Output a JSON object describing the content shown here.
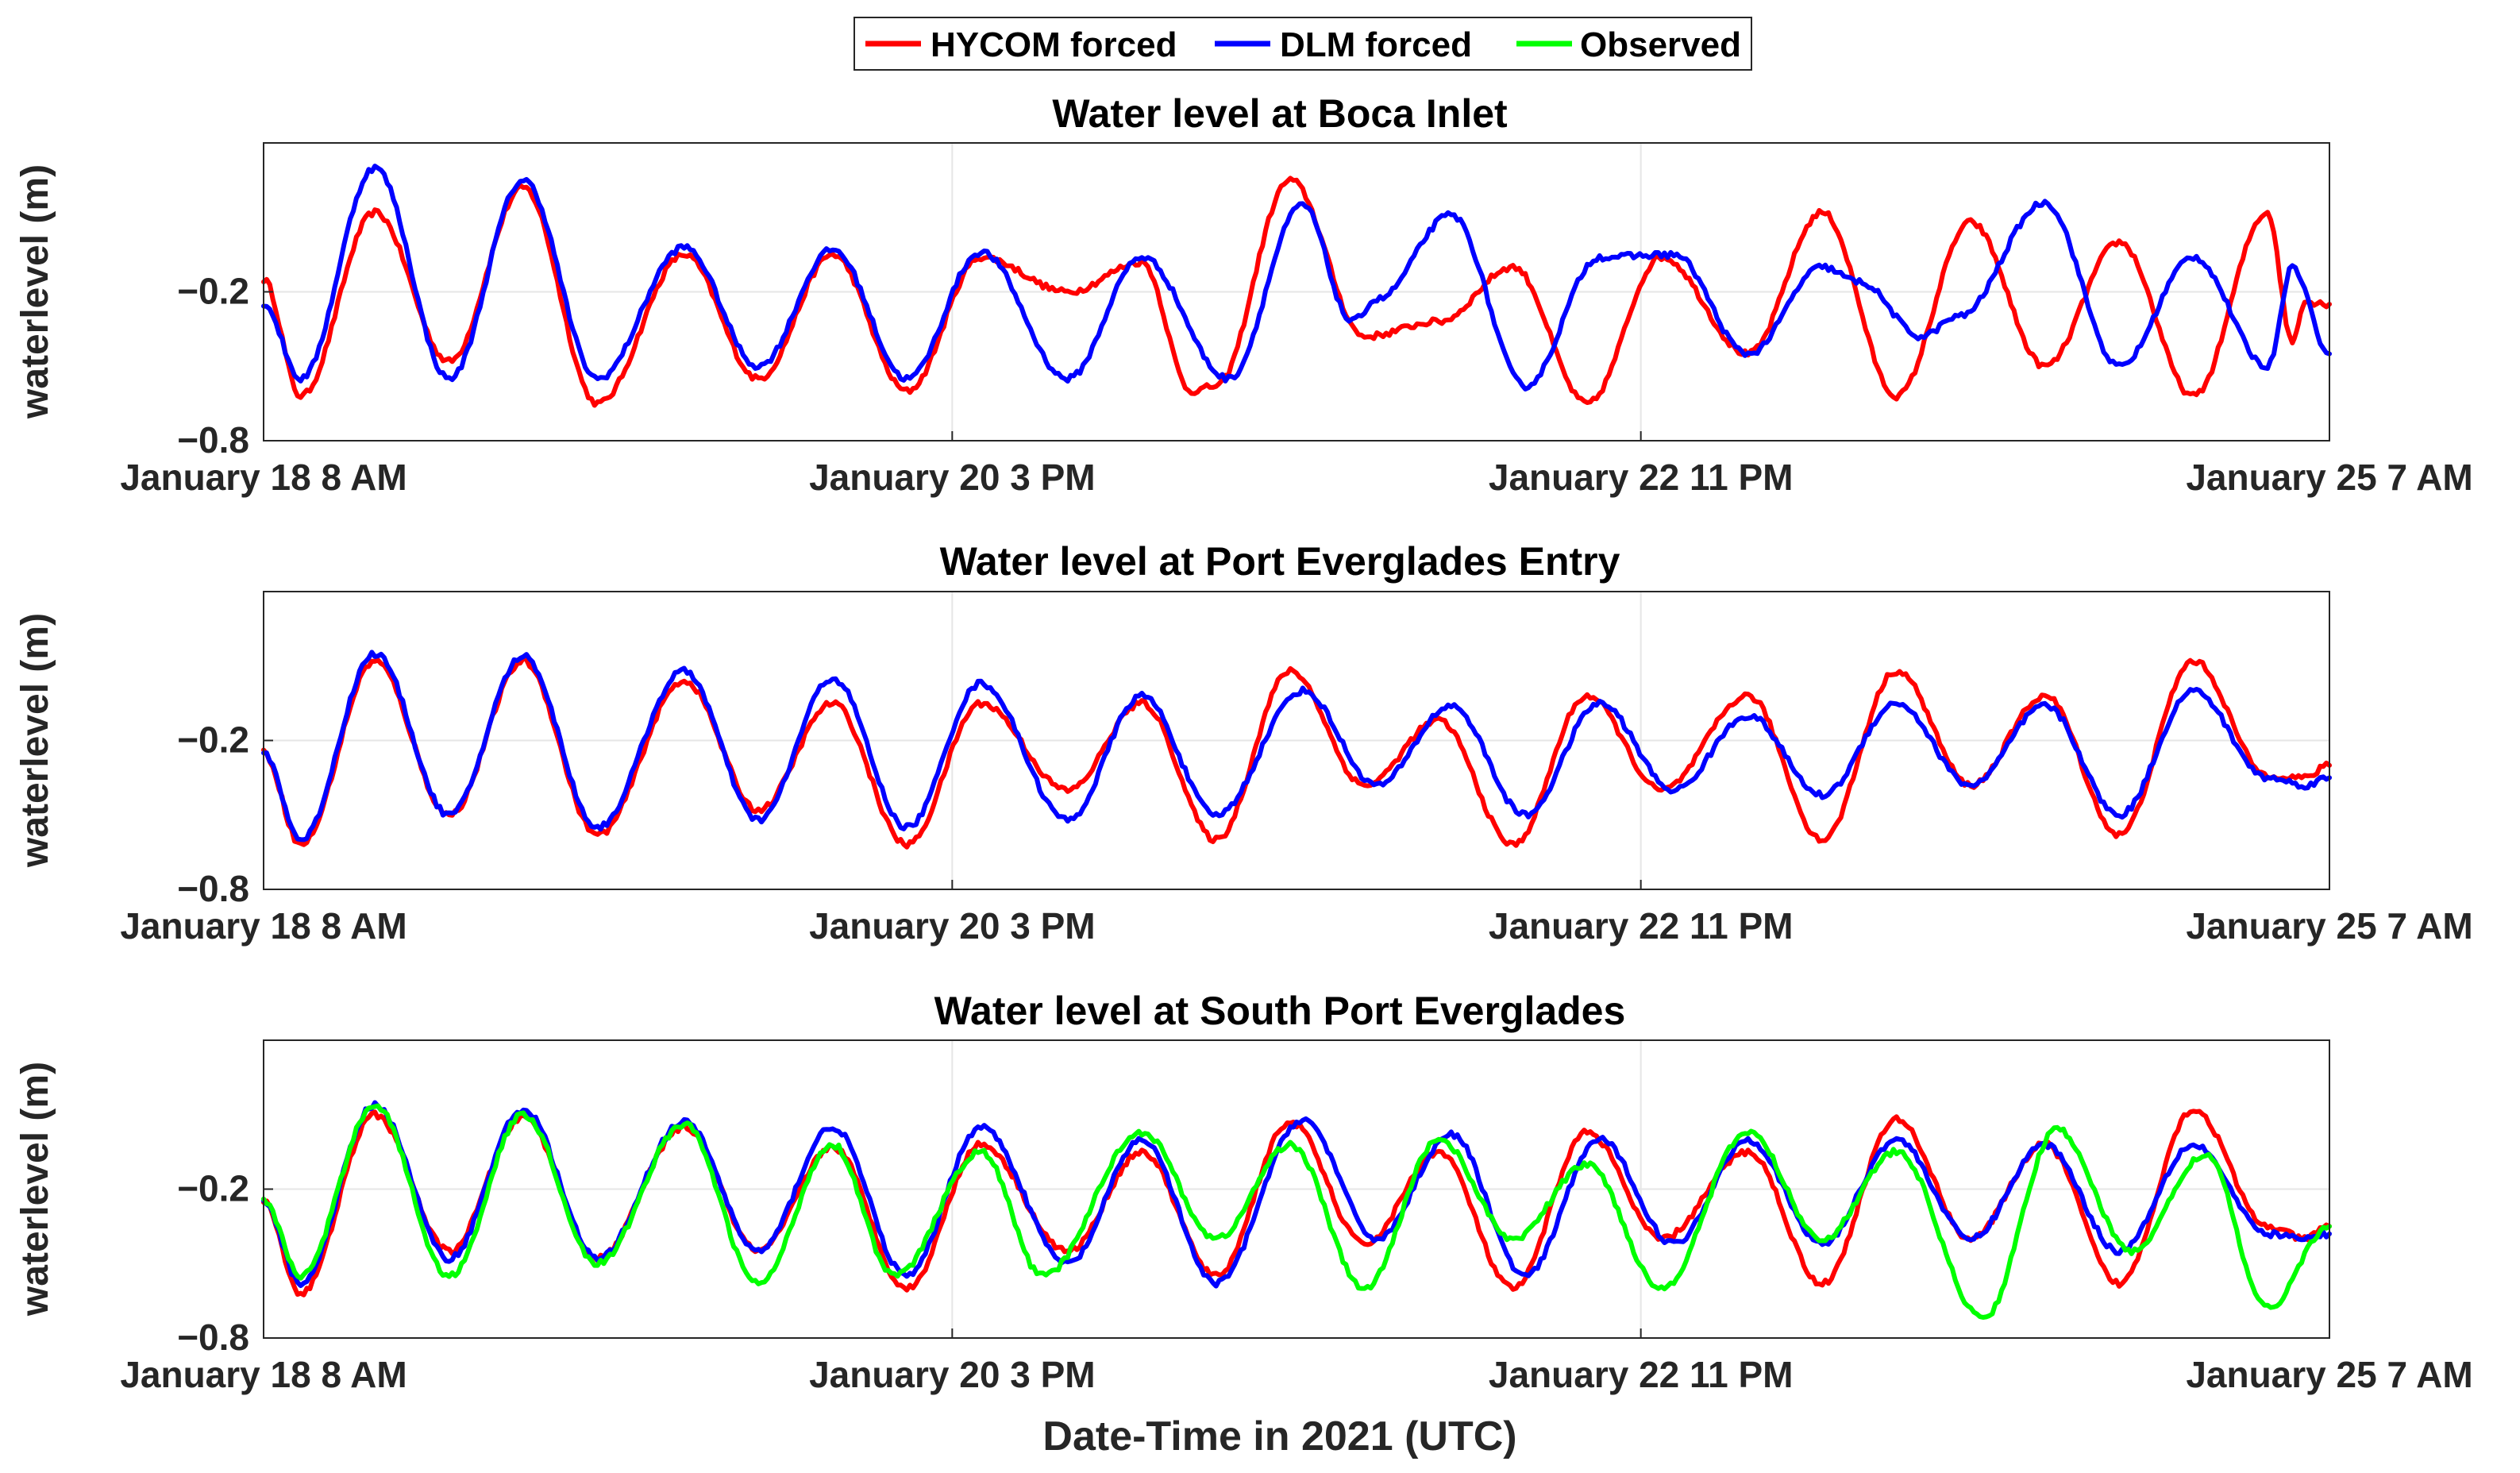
{
  "chart_data": [
    {
      "type": "line",
      "title": "Water level at Boca Inlet",
      "ylabel": "waterlevel (m)",
      "xlabel": "",
      "x_ticks": [
        "January 18  8 AM",
        "January 20  3 PM",
        "January 22 11 PM",
        "January 25  7 AM"
      ],
      "y_ticks": [
        -0.2,
        -0.8
      ],
      "ylim": [
        -0.8,
        0.4
      ],
      "x_unit": "hours since January 18 8 AM (2021 UTC)",
      "xlim": [
        0,
        167
      ],
      "grid": true,
      "series": [
        {
          "name": "HYCOM forced",
          "color": "#ff0000",
          "x": [
            0,
            3,
            9,
            15,
            21,
            27,
            34,
            40,
            46,
            52,
            58,
            65,
            71,
            75,
            77,
            83,
            89,
            95,
            101,
            107,
            113,
            120,
            126,
            132,
            138,
            144,
            150,
            156,
            162,
            164,
            165,
            167
          ],
          "values": [
            -0.15,
            -0.62,
            0.12,
            -0.48,
            0.22,
            -0.65,
            -0.05,
            -0.55,
            -0.05,
            -0.6,
            -0.06,
            -0.2,
            -0.08,
            -0.6,
            -0.58,
            0.25,
            -0.38,
            -0.32,
            -0.1,
            -0.65,
            -0.06,
            -0.45,
            0.12,
            -0.62,
            0.08,
            -0.5,
            0.0,
            -0.62,
            0.12,
            -0.4,
            -0.24,
            -0.25
          ]
        },
        {
          "name": "DLM forced",
          "color": "#0000ff",
          "x": [
            0,
            3,
            9,
            15,
            21,
            27,
            34,
            40,
            46,
            52,
            58,
            65,
            71,
            78,
            84,
            88,
            90,
            96,
            102,
            108,
            114,
            120,
            126,
            129,
            134,
            137,
            144,
            150,
            156,
            162,
            164,
            167
          ],
          "values": [
            -0.25,
            -0.55,
            0.3,
            -0.55,
            0.25,
            -0.55,
            -0.02,
            -0.5,
            -0.03,
            -0.55,
            -0.04,
            -0.55,
            -0.06,
            -0.55,
            0.15,
            -0.32,
            -0.23,
            0.11,
            -0.58,
            -0.06,
            -0.05,
            -0.45,
            -0.1,
            -0.16,
            -0.38,
            -0.3,
            0.16,
            -0.5,
            -0.06,
            -0.5,
            -0.1,
            -0.45
          ]
        }
      ]
    },
    {
      "type": "line",
      "title": "Water level at Port Everglades Entry",
      "ylabel": "waterlevel (m)",
      "xlabel": "",
      "x_ticks": [
        "January 18  8 AM",
        "January 20  3 PM",
        "January 22 11 PM",
        "January 25  7 AM"
      ],
      "y_ticks": [
        -0.2,
        -0.8
      ],
      "ylim": [
        -0.8,
        0.4
      ],
      "x_unit": "hours since January 18 8 AM (2021 UTC)",
      "xlim": [
        0,
        167
      ],
      "grid": true,
      "series": [
        {
          "name": "HYCOM forced",
          "color": "#ff0000",
          "x": [
            0,
            3,
            9,
            15,
            21,
            27,
            34,
            40,
            46,
            52,
            58,
            65,
            71,
            77,
            83,
            89,
            95,
            101,
            107,
            113,
            120,
            126,
            132,
            138,
            144,
            150,
            156,
            162,
            165,
            167
          ],
          "values": [
            -0.25,
            -0.62,
            0.12,
            -0.5,
            0.12,
            -0.58,
            0.04,
            -0.48,
            -0.05,
            -0.62,
            -0.05,
            -0.4,
            -0.05,
            -0.6,
            0.08,
            -0.38,
            -0.12,
            -0.62,
            -0.02,
            -0.4,
            -0.02,
            -0.6,
            0.08,
            -0.38,
            -0.02,
            -0.58,
            0.12,
            -0.34,
            -0.35,
            -0.3
          ]
        },
        {
          "name": "DLM forced",
          "color": "#0000ff",
          "x": [
            0,
            3,
            9,
            15,
            21,
            27,
            34,
            40,
            46,
            52,
            58,
            65,
            71,
            77,
            84,
            90,
            96,
            102,
            108,
            114,
            120,
            126,
            132,
            138,
            144,
            150,
            156,
            162,
            165,
            167
          ],
          "values": [
            -0.25,
            -0.6,
            0.15,
            -0.5,
            0.14,
            -0.55,
            0.08,
            -0.52,
            0.05,
            -0.55,
            0.03,
            -0.52,
            -0.02,
            -0.5,
            0.0,
            -0.38,
            -0.06,
            -0.5,
            -0.05,
            -0.4,
            -0.1,
            -0.42,
            -0.05,
            -0.38,
            -0.06,
            -0.5,
            0.0,
            -0.35,
            -0.38,
            -0.35
          ]
        }
      ]
    },
    {
      "type": "line",
      "title": "Water level at South Port Everglades",
      "ylabel": "waterlevel (m)",
      "xlabel": "Date-Time in 2021 (UTC)",
      "x_ticks": [
        "January 18  8 AM",
        "January 20  3 PM",
        "January 22 11 PM",
        "January 25  7 AM"
      ],
      "y_ticks": [
        -0.2,
        -0.8
      ],
      "ylim": [
        -0.8,
        0.4
      ],
      "x_unit": "hours since January 18 8 AM (2021 UTC)",
      "xlim": [
        0,
        167
      ],
      "grid": true,
      "series": [
        {
          "name": "HYCOM forced",
          "color": "#ff0000",
          "x": [
            0,
            3,
            9,
            15,
            21,
            27,
            34,
            40,
            46,
            52,
            58,
            65,
            71,
            77,
            83,
            89,
            95,
            101,
            107,
            113,
            120,
            126,
            132,
            138,
            144,
            150,
            156,
            162,
            165,
            167
          ],
          "values": [
            -0.25,
            -0.62,
            0.1,
            -0.45,
            0.09,
            -0.48,
            0.05,
            -0.45,
            -0.03,
            -0.6,
            -0.02,
            -0.45,
            -0.05,
            -0.55,
            0.07,
            -0.42,
            -0.05,
            -0.6,
            0.03,
            -0.4,
            -0.05,
            -0.58,
            0.08,
            -0.4,
            -0.02,
            -0.58,
            0.12,
            -0.35,
            -0.4,
            -0.35
          ]
        },
        {
          "name": "DLM forced",
          "color": "#0000ff",
          "x": [
            0,
            3,
            9,
            15,
            21,
            27,
            34,
            40,
            46,
            52,
            58,
            65,
            71,
            77,
            84,
            90,
            96,
            102,
            108,
            114,
            120,
            126,
            132,
            138,
            144,
            150,
            156,
            162,
            165,
            167
          ],
          "values": [
            -0.25,
            -0.58,
            0.14,
            -0.48,
            0.12,
            -0.48,
            0.07,
            -0.45,
            0.05,
            -0.55,
            0.05,
            -0.5,
            0.0,
            -0.58,
            0.08,
            -0.4,
            0.02,
            -0.55,
            0.0,
            -0.42,
            0.0,
            -0.42,
            0.0,
            -0.4,
            -0.02,
            -0.45,
            -0.02,
            -0.38,
            -0.4,
            -0.38
          ]
        },
        {
          "name": "Observed",
          "color": "#00ff00",
          "x": [
            0,
            3,
            9,
            15,
            21,
            27,
            34,
            40,
            46,
            51,
            58,
            63,
            71,
            77,
            83,
            89,
            95,
            101,
            107,
            113,
            120,
            126,
            132,
            139,
            145,
            151,
            157,
            162,
            167
          ],
          "values": [
            -0.25,
            -0.55,
            0.14,
            -0.55,
            0.1,
            -0.5,
            0.06,
            -0.58,
            -0.02,
            -0.55,
            -0.05,
            -0.55,
            0.03,
            -0.4,
            -0.02,
            -0.6,
            -0.0,
            -0.4,
            -0.1,
            -0.6,
            0.03,
            -0.4,
            -0.05,
            -0.72,
            0.04,
            -0.45,
            -0.06,
            -0.68,
            -0.35
          ]
        }
      ]
    }
  ],
  "legend": {
    "placement": "top-center",
    "entries": [
      {
        "label": "HYCOM forced",
        "color": "#ff0000"
      },
      {
        "label": "DLM forced",
        "color": "#0000ff"
      },
      {
        "label": "Observed",
        "color": "#00ff00"
      }
    ]
  }
}
